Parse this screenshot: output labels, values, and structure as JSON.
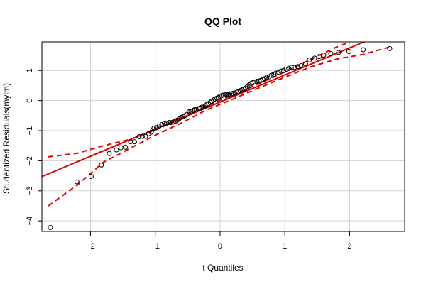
{
  "chart_data": {
    "type": "scatter",
    "title": "QQ Plot",
    "xlabel": "t Quantiles",
    "ylabel": "Studentized Residuals(mylm)",
    "xlim": [
      -2.75,
      2.85
    ],
    "ylim": [
      -4.35,
      1.95
    ],
    "xticks": [
      -2,
      -1,
      0,
      1,
      2
    ],
    "yticks": [
      -4,
      -3,
      -2,
      -1,
      0,
      1
    ],
    "grid": true,
    "reference_line": {
      "slope": 0.9,
      "intercept": -0.05,
      "color": "#dd0000"
    },
    "envelope": {
      "color": "#dd0000",
      "upper": [
        [
          -2.65,
          -1.87
        ],
        [
          -2.2,
          -1.75
        ],
        [
          -1.8,
          -1.5
        ],
        [
          -1.4,
          -1.3
        ],
        [
          -1.0,
          -0.98
        ],
        [
          -0.6,
          -0.6
        ],
        [
          -0.2,
          -0.17
        ],
        [
          0.2,
          0.18
        ],
        [
          0.6,
          0.56
        ],
        [
          1.0,
          0.95
        ],
        [
          1.4,
          1.37
        ],
        [
          1.8,
          1.78
        ],
        [
          2.0,
          1.95
        ]
      ],
      "lower": [
        [
          -2.65,
          -3.5
        ],
        [
          -2.2,
          -2.8
        ],
        [
          -1.8,
          -2.05
        ],
        [
          -1.4,
          -1.6
        ],
        [
          -1.0,
          -1.15
        ],
        [
          -0.6,
          -0.75
        ],
        [
          -0.2,
          -0.3
        ],
        [
          0.2,
          0.05
        ],
        [
          0.6,
          0.42
        ],
        [
          1.0,
          0.78
        ],
        [
          1.4,
          1.12
        ],
        [
          1.8,
          1.38
        ],
        [
          2.2,
          1.53
        ],
        [
          2.65,
          1.8
        ]
      ]
    },
    "points_x": [
      -2.62,
      -2.21,
      -1.99,
      -1.83,
      -1.71,
      -1.6,
      -1.53,
      -1.46,
      -1.38,
      -1.32,
      -1.25,
      -1.2,
      -1.15,
      -1.1,
      -1.06,
      -1.02,
      -0.98,
      -0.94,
      -0.9,
      -0.86,
      -0.83,
      -0.79,
      -0.76,
      -0.72,
      -0.69,
      -0.66,
      -0.63,
      -0.6,
      -0.57,
      -0.54,
      -0.51,
      -0.48,
      -0.45,
      -0.42,
      -0.39,
      -0.37,
      -0.34,
      -0.31,
      -0.28,
      -0.26,
      -0.23,
      -0.2,
      -0.18,
      -0.15,
      -0.13,
      -0.1,
      -0.08,
      -0.05,
      -0.03,
      0.0,
      0.03,
      0.05,
      0.08,
      0.1,
      0.13,
      0.15,
      0.18,
      0.2,
      0.23,
      0.26,
      0.28,
      0.31,
      0.34,
      0.37,
      0.39,
      0.42,
      0.45,
      0.48,
      0.51,
      0.54,
      0.57,
      0.6,
      0.63,
      0.66,
      0.69,
      0.72,
      0.76,
      0.79,
      0.83,
      0.86,
      0.9,
      0.94,
      0.98,
      1.02,
      1.06,
      1.1,
      1.15,
      1.2,
      1.25,
      1.32,
      1.38,
      1.46,
      1.53,
      1.6,
      1.71,
      1.83,
      1.99,
      2.21,
      2.62
    ],
    "points_y": [
      -4.22,
      -2.7,
      -2.52,
      -2.14,
      -1.76,
      -1.64,
      -1.57,
      -1.55,
      -1.37,
      -1.37,
      -1.2,
      -1.19,
      -1.19,
      -1.1,
      -1.05,
      -0.92,
      -0.9,
      -0.85,
      -0.8,
      -0.76,
      -0.75,
      -0.73,
      -0.73,
      -0.71,
      -0.69,
      -0.65,
      -0.6,
      -0.56,
      -0.53,
      -0.5,
      -0.46,
      -0.37,
      -0.36,
      -0.33,
      -0.3,
      -0.28,
      -0.27,
      -0.25,
      -0.22,
      -0.22,
      -0.18,
      -0.12,
      -0.1,
      -0.06,
      -0.02,
      0.02,
      0.05,
      0.08,
      0.1,
      0.14,
      0.17,
      0.18,
      0.19,
      0.2,
      0.2,
      0.22,
      0.22,
      0.24,
      0.25,
      0.28,
      0.3,
      0.33,
      0.36,
      0.38,
      0.41,
      0.46,
      0.52,
      0.57,
      0.6,
      0.62,
      0.64,
      0.65,
      0.67,
      0.7,
      0.73,
      0.77,
      0.79,
      0.84,
      0.87,
      0.91,
      0.94,
      0.98,
      1.0,
      1.04,
      1.07,
      1.1,
      1.1,
      1.13,
      1.16,
      1.22,
      1.35,
      1.41,
      1.46,
      1.51,
      1.56,
      1.6,
      1.63,
      1.69,
      1.73
    ]
  }
}
